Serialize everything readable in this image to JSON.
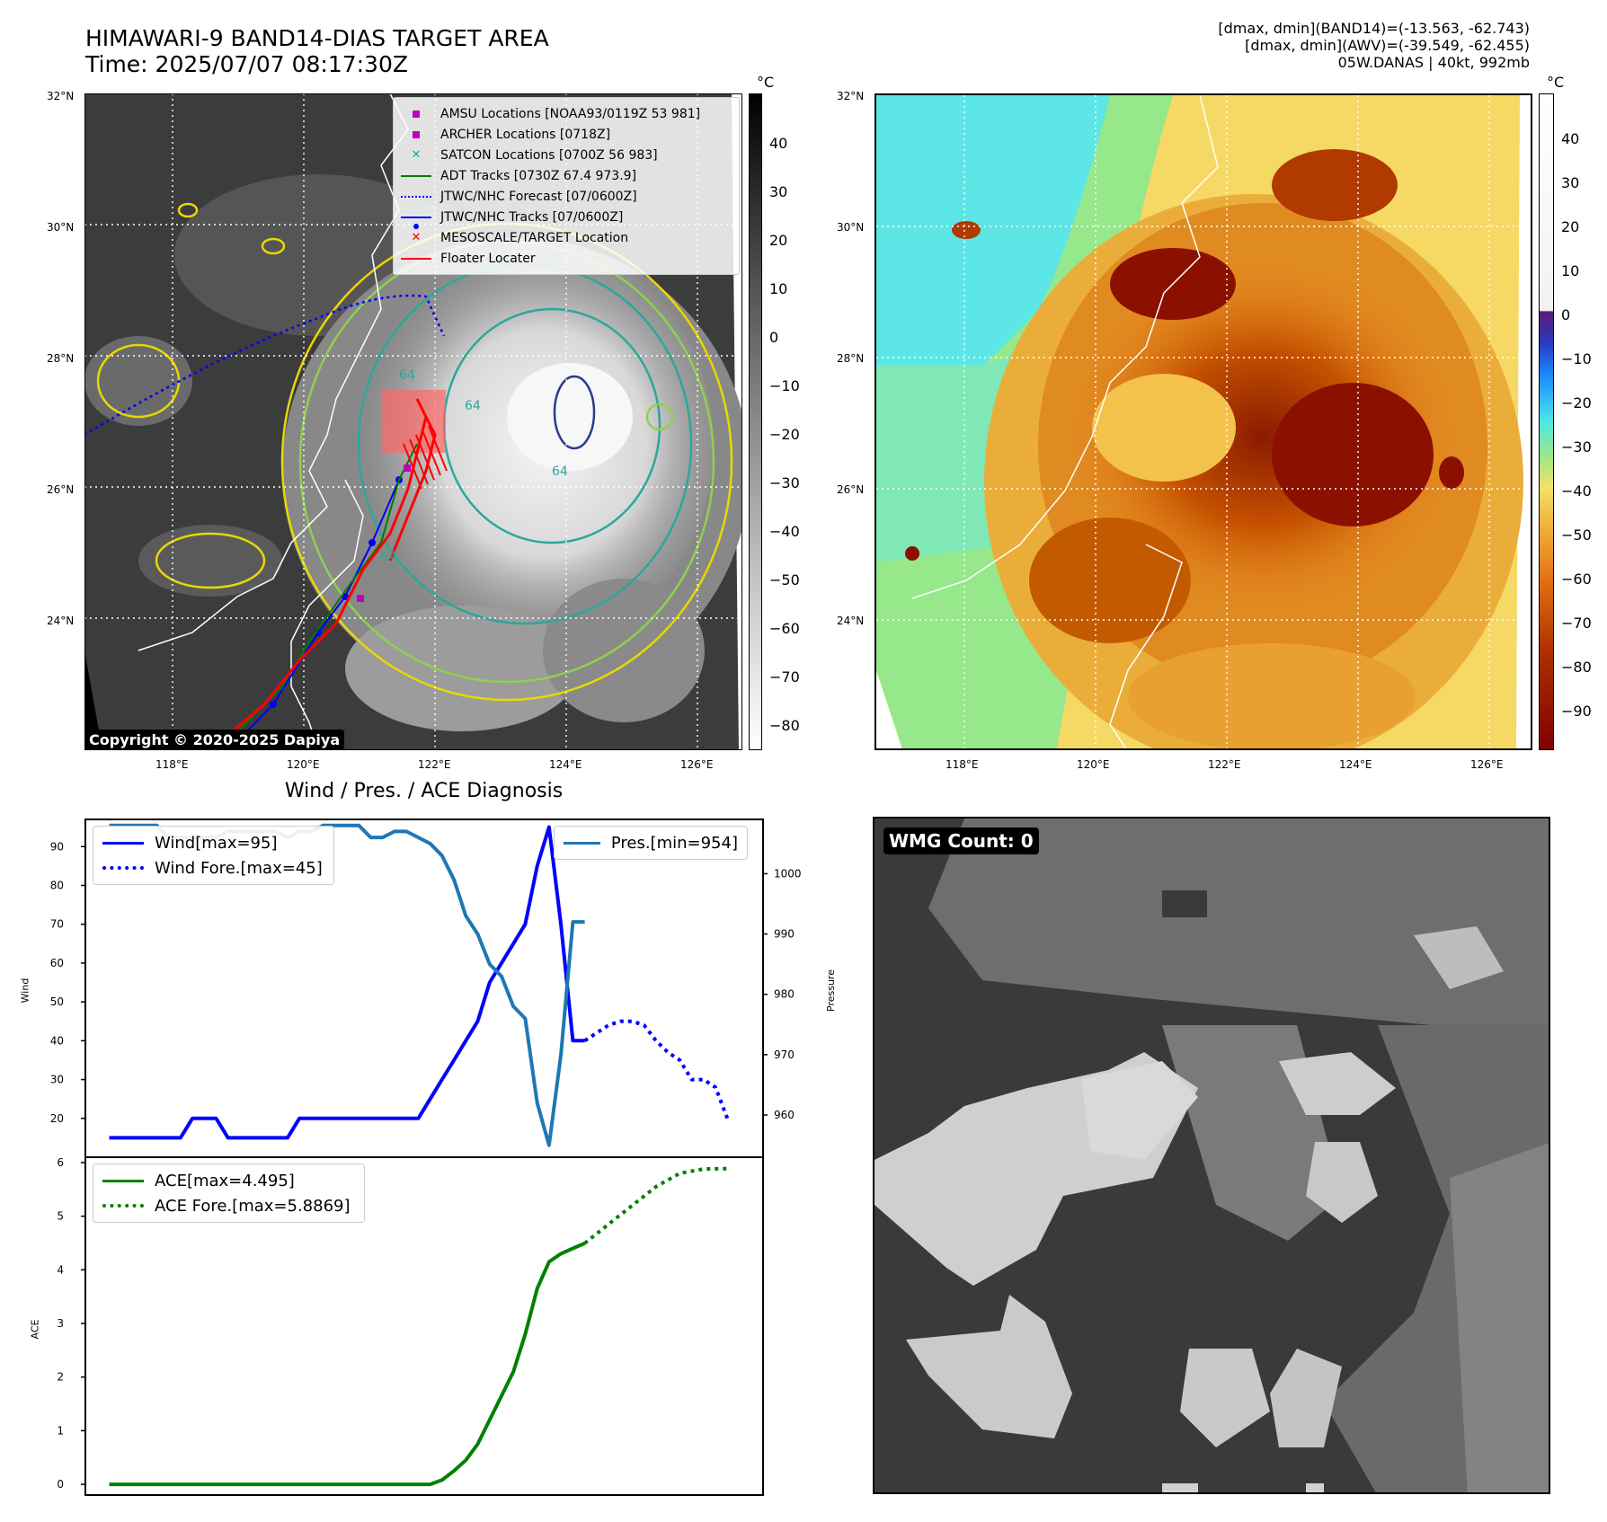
{
  "header": {
    "title_line1": "HIMAWARI-9 BAND14-DIAS TARGET AREA",
    "title_line2": "Time: 2025/07/07 08:17:30Z",
    "meta_line1": "[dmax, dmin](BAND14)=(-13.563, -62.743)",
    "meta_line2": "[dmax, dmin](AWV)=(-39.549, -62.455)",
    "meta_line3": "05W.DANAS | 40kt, 992mb"
  },
  "map_axes": {
    "lat_ticks": [
      "32°N",
      "30°N",
      "28°N",
      "26°N",
      "24°N"
    ],
    "lon_ticks": [
      "118°E",
      "120°E",
      "122°E",
      "124°E",
      "126°E"
    ]
  },
  "ir_panel": {
    "colorbar_unit": "°C",
    "colorbar_ticks": [
      "40",
      "30",
      "20",
      "10",
      "0",
      "−10",
      "−20",
      "−30",
      "−40",
      "−50",
      "−60",
      "−70",
      "−80"
    ],
    "copyright": "Copyright © 2020-2025 Dapiya",
    "legend": [
      {
        "label": "AMSU Locations [NOAA93/0119Z 53 981]",
        "icon": "magenta-square",
        "color": "#c000c0"
      },
      {
        "label": "ARCHER Locations [0718Z]",
        "icon": "magenta-square",
        "color": "#c000c0"
      },
      {
        "label": "SATCON Locations [0700Z 56 983]",
        "icon": "cyan-x",
        "color": "#00b0b0"
      },
      {
        "label": "ADT Tracks [0730Z 67.4 973.9]",
        "icon": "green-line",
        "color": "#007a00"
      },
      {
        "label": "JTWC/NHC Forecast [07/0600Z]",
        "icon": "blue-dotted-line",
        "color": "#0000ff"
      },
      {
        "label": "JTWC/NHC Tracks [07/0600Z]",
        "icon": "blue-line-dot",
        "color": "#0000ff"
      },
      {
        "label": "MESOSCALE/TARGET Location",
        "icon": "red-x",
        "color": "#ff0000"
      },
      {
        "label": "Floater Locater",
        "icon": "red-line",
        "color": "#ff0000"
      }
    ],
    "contour_labels": [
      "64",
      "64",
      "64",
      "64"
    ]
  },
  "wv_panel": {
    "colorbar_unit": "°C",
    "colorbar_ticks": [
      "40",
      "30",
      "20",
      "10",
      "0",
      "−10",
      "−20",
      "−30",
      "−40",
      "−50",
      "−60",
      "−70",
      "−80",
      "−90"
    ]
  },
  "wmg_panel": {
    "label": "WMG Count: 0"
  },
  "chart_data": [
    {
      "type": "line",
      "title": "Wind / Pres. / ACE Diagnosis",
      "ylabel": "Wind",
      "y2label": "Pressure",
      "ylim": [
        10,
        97
      ],
      "y2lim": [
        953,
        1009
      ],
      "yticks": [
        20,
        30,
        40,
        50,
        60,
        70,
        80,
        90
      ],
      "y2ticks": [
        960,
        970,
        980,
        990,
        1000
      ],
      "legend_left": [
        "Wind[max=95]",
        "Wind Fore.[max=45]"
      ],
      "legend_right": [
        "Pres.[min=954]"
      ],
      "series": [
        {
          "name": "Wind[max=95]",
          "color": "#0000ff",
          "style": "solid",
          "axis": "left",
          "x": [
            0,
            1,
            2,
            3,
            4,
            5,
            6,
            7,
            8,
            9,
            10,
            11,
            12,
            13,
            14,
            15,
            16,
            17,
            18,
            19,
            20,
            21,
            22,
            23,
            24,
            25,
            26,
            27,
            28,
            29,
            30,
            31,
            32,
            33,
            34,
            35,
            36,
            37,
            38,
            39,
            40
          ],
          "values": [
            15,
            15,
            15,
            15,
            15,
            15,
            15,
            20,
            20,
            20,
            15,
            15,
            15,
            15,
            15,
            15,
            20,
            20,
            20,
            20,
            20,
            20,
            20,
            20,
            20,
            20,
            20,
            25,
            30,
            35,
            40,
            45,
            55,
            60,
            65,
            70,
            85,
            95,
            70,
            40,
            40
          ]
        },
        {
          "name": "Wind Fore.[max=45]",
          "color": "#0000ff",
          "style": "dotted",
          "axis": "left",
          "x": [
            40,
            41,
            42,
            43,
            44,
            45,
            46,
            47,
            48,
            49,
            50,
            51,
            52
          ],
          "values": [
            40,
            42,
            44,
            45,
            45,
            44,
            40,
            37,
            35,
            30,
            30,
            28,
            20
          ]
        },
        {
          "name": "Pres.[min=954]",
          "color": "#1f77b4",
          "style": "solid",
          "axis": "right",
          "x": [
            0,
            1,
            2,
            3,
            4,
            5,
            6,
            7,
            8,
            9,
            10,
            11,
            12,
            13,
            14,
            15,
            16,
            17,
            18,
            19,
            20,
            21,
            22,
            23,
            24,
            25,
            26,
            27,
            28,
            29,
            30,
            31,
            32,
            33,
            34,
            35,
            36,
            37,
            38,
            39,
            40
          ],
          "values": [
            1008,
            1008,
            1008,
            1008,
            1008,
            1006,
            1006,
            1006,
            1006,
            1006,
            1007,
            1007,
            1007,
            1007,
            1007,
            1006,
            1007,
            1007,
            1008,
            1008,
            1008,
            1008,
            1006,
            1006,
            1007,
            1007,
            1006,
            1005,
            1003,
            999,
            993,
            990,
            985,
            983,
            978,
            976,
            962,
            955,
            970,
            992,
            992
          ]
        }
      ]
    },
    {
      "type": "line",
      "ylabel": "ACE",
      "ylim": [
        -0.2,
        6.1
      ],
      "yticks": [
        0,
        1,
        2,
        3,
        4,
        5,
        6
      ],
      "legend": [
        "ACE[max=4.495]",
        "ACE Fore.[max=5.8869]"
      ],
      "series": [
        {
          "name": "ACE[max=4.495]",
          "color": "#008000",
          "style": "solid",
          "x": [
            0,
            5,
            10,
            15,
            20,
            25,
            27,
            28,
            29,
            30,
            31,
            32,
            33,
            34,
            35,
            36,
            37,
            38,
            39,
            40
          ],
          "values": [
            0,
            0,
            0,
            0,
            0,
            0,
            0,
            0.08,
            0.25,
            0.45,
            0.75,
            1.2,
            1.65,
            2.1,
            2.8,
            3.65,
            4.15,
            4.3,
            4.4,
            4.495
          ]
        },
        {
          "name": "ACE Fore.[max=5.8869]",
          "color": "#008000",
          "style": "dotted",
          "x": [
            40,
            42,
            44,
            46,
            48,
            50,
            52
          ],
          "values": [
            4.495,
            4.85,
            5.2,
            5.55,
            5.8,
            5.88,
            5.8869
          ]
        }
      ]
    }
  ]
}
